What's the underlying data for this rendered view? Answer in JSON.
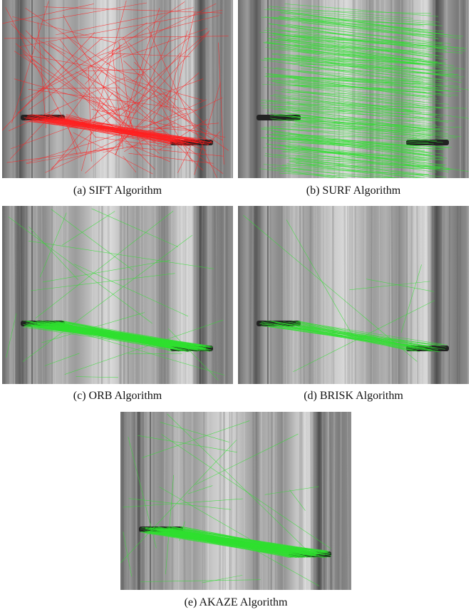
{
  "figure": {
    "panels": [
      {
        "caption": "(a) SIFT Algorithm"
      },
      {
        "caption": "(b) SURF Algorithm"
      },
      {
        "caption": "(c) ORB Algorithm"
      },
      {
        "caption": "(d) BRISK Algorithm"
      },
      {
        "caption": "(e) AKAZE Algorithm"
      }
    ]
  }
}
